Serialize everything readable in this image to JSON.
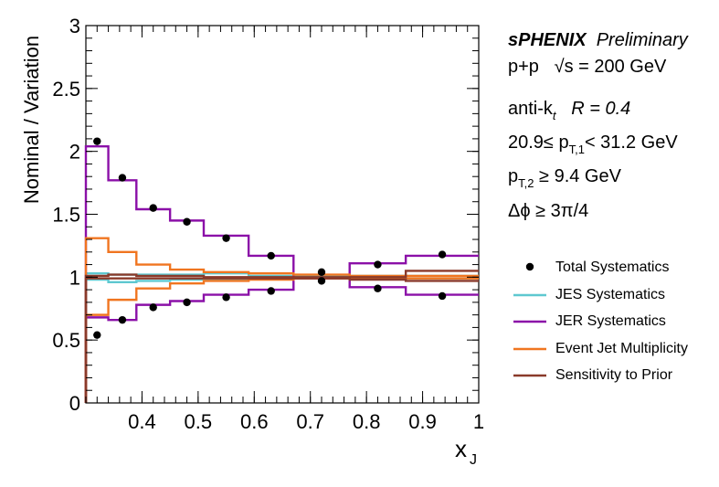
{
  "chart_data": {
    "type": "line",
    "xlabel": "x",
    "xlabel_sub": "J",
    "ylabel": "Nominal / Variation",
    "xlim": [
      0.3,
      1.0
    ],
    "ylim": [
      0,
      3
    ],
    "x_ticks": [
      "0.4",
      "0.5",
      "0.6",
      "0.7",
      "0.8",
      "0.9",
      "1"
    ],
    "y_ticks": [
      "0",
      "0.5",
      "1",
      "1.5",
      "2",
      "2.5",
      "3"
    ],
    "bin_edges": [
      0.3,
      0.34,
      0.39,
      0.45,
      0.51,
      0.59,
      0.67,
      0.77,
      0.87,
      1.0
    ],
    "annotations": {
      "experiment": "sPHENIX",
      "status": "Preliminary",
      "system": "p+p",
      "energy": "√s = 200 GeV",
      "jet_algo_prefix": "anti-k",
      "jet_algo_sub": "t",
      "jet_radius": "R = 0.4",
      "pt1_lo": "20.9≤ p",
      "pt1_sub": "T,1",
      "pt1_hi": "< 31.2 GeV",
      "pt2_lo": "p",
      "pt2_sub": "T,2",
      "pt2_hi": "≥ 9.4 GeV",
      "dphi": "Δϕ ≥ 3π/4"
    },
    "series": [
      {
        "name": "Total Systematics",
        "kind": "points",
        "color": "#000000",
        "points": [
          {
            "x": 0.32,
            "y": 2.08
          },
          {
            "x": 0.365,
            "y": 1.79
          },
          {
            "x": 0.42,
            "y": 1.55
          },
          {
            "x": 0.48,
            "y": 1.44
          },
          {
            "x": 0.55,
            "y": 1.31
          },
          {
            "x": 0.63,
            "y": 1.17
          },
          {
            "x": 0.72,
            "y": 1.04
          },
          {
            "x": 0.82,
            "y": 1.1
          },
          {
            "x": 0.935,
            "y": 1.18
          },
          {
            "x": 0.32,
            "y": 0.54
          },
          {
            "x": 0.365,
            "y": 0.66
          },
          {
            "x": 0.42,
            "y": 0.76
          },
          {
            "x": 0.48,
            "y": 0.8
          },
          {
            "x": 0.55,
            "y": 0.84
          },
          {
            "x": 0.63,
            "y": 0.89
          },
          {
            "x": 0.72,
            "y": 0.97
          },
          {
            "x": 0.82,
            "y": 0.91
          },
          {
            "x": 0.935,
            "y": 0.85
          }
        ]
      },
      {
        "name": "JES Systematics",
        "kind": "step",
        "color": "#5ec8d0",
        "upper": [
          1.03,
          1.02,
          1.02,
          1.02,
          1.03,
          1.01,
          1.01,
          1.01,
          1.01
        ],
        "lower": [
          0.98,
          0.96,
          0.97,
          0.98,
          0.98,
          0.99,
          0.99,
          0.99,
          0.99
        ]
      },
      {
        "name": "JER Systematics",
        "kind": "step",
        "color": "#8b10a8",
        "upper": [
          2.04,
          1.77,
          1.54,
          1.45,
          1.33,
          1.17,
          0.99,
          1.11,
          1.17
        ],
        "lower": [
          0.68,
          0.66,
          0.78,
          0.81,
          0.86,
          0.9,
          0.99,
          0.92,
          0.86
        ]
      },
      {
        "name": "Event Jet Multiplicity",
        "kind": "step",
        "color": "#f07520",
        "upper": [
          1.31,
          1.2,
          1.1,
          1.06,
          1.04,
          1.03,
          1.02,
          1.01,
          1.01
        ],
        "lower": [
          0.7,
          0.82,
          0.91,
          0.95,
          0.97,
          0.98,
          0.99,
          0.99,
          0.99
        ]
      },
      {
        "name": "Sensitivity to Prior",
        "kind": "step",
        "color": "#8a3a2a",
        "upper": [
          1.01,
          1.02,
          1.01,
          1.01,
          1.0,
          1.0,
          1.0,
          1.0,
          1.05
        ],
        "lower": [
          0.99,
          0.99,
          0.99,
          0.99,
          0.99,
          0.99,
          0.99,
          0.98,
          0.97
        ]
      }
    ]
  }
}
